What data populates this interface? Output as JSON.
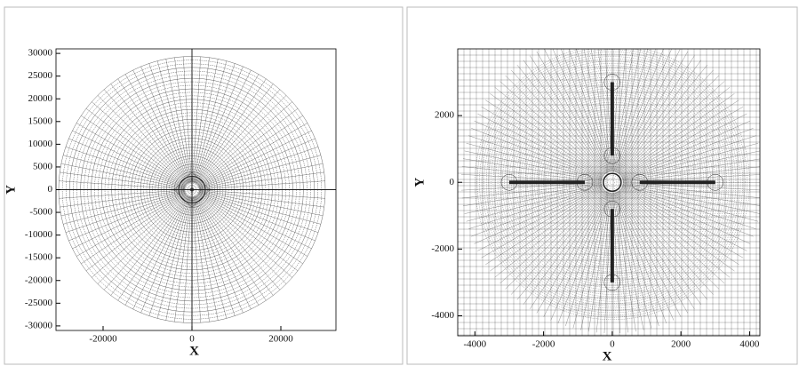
{
  "chart_data": [
    {
      "type": "mesh",
      "xlabel": "X",
      "ylabel": "Y",
      "xlim": [
        -30600,
        32400
      ],
      "ylim": [
        -31000,
        31000
      ],
      "xticks": [
        -20000,
        0,
        20000
      ],
      "yticks": [
        30000,
        25000,
        20000,
        15000,
        10000,
        5000,
        0,
        -5000,
        -10000,
        -15000,
        -20000,
        -25000,
        -30000
      ]
    },
    {
      "type": "mesh",
      "xlabel": "X",
      "ylabel": "Y",
      "xlim": [
        -4500,
        4300
      ],
      "ylim": [
        -4600,
        4000
      ],
      "xticks": [
        -4000,
        -2000,
        0,
        2000,
        4000
      ],
      "yticks": [
        2000,
        0,
        -2000,
        -4000
      ]
    }
  ]
}
